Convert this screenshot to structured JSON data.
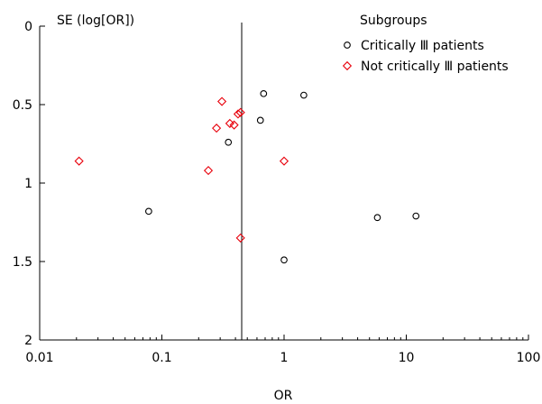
{
  "chart_data": {
    "type": "scatter",
    "title": "",
    "xlabel": "OR",
    "ylabel": "SE (log[OR])",
    "x_scale": "log",
    "xlim": [
      0.01,
      100
    ],
    "ylim": [
      2,
      0
    ],
    "y_inverted": true,
    "x_ticks": [
      {
        "value": 0.01,
        "label": "0.01"
      },
      {
        "value": 0.1,
        "label": "0.1"
      },
      {
        "value": 1,
        "label": "1"
      },
      {
        "value": 10,
        "label": "10"
      },
      {
        "value": 100,
        "label": "100"
      }
    ],
    "y_ticks": [
      {
        "value": 0,
        "label": "0"
      },
      {
        "value": 0.5,
        "label": "0.5"
      },
      {
        "value": 1,
        "label": "1"
      },
      {
        "value": 1.5,
        "label": "1.5"
      },
      {
        "value": 2,
        "label": "2"
      }
    ],
    "reference_line_x": 0.45,
    "grid": false,
    "legend": {
      "title": "Subgroups",
      "position": "top-right"
    },
    "series": [
      {
        "name": "Critically Ⅲ patients",
        "marker": "circle",
        "color": "#000000",
        "points": [
          {
            "x": 0.68,
            "y": 0.43
          },
          {
            "x": 1.45,
            "y": 0.44
          },
          {
            "x": 0.64,
            "y": 0.6
          },
          {
            "x": 0.35,
            "y": 0.74
          },
          {
            "x": 0.078,
            "y": 1.18
          },
          {
            "x": 5.8,
            "y": 1.22
          },
          {
            "x": 12,
            "y": 1.21
          },
          {
            "x": 1.0,
            "y": 1.49
          }
        ]
      },
      {
        "name": "Not critically Ⅲ patients",
        "marker": "diamond",
        "color": "#e8000b",
        "points": [
          {
            "x": 0.31,
            "y": 0.48
          },
          {
            "x": 0.44,
            "y": 0.55
          },
          {
            "x": 0.42,
            "y": 0.56
          },
          {
            "x": 0.36,
            "y": 0.62
          },
          {
            "x": 0.39,
            "y": 0.63
          },
          {
            "x": 0.28,
            "y": 0.65
          },
          {
            "x": 0.021,
            "y": 0.86
          },
          {
            "x": 1.0,
            "y": 0.86
          },
          {
            "x": 0.24,
            "y": 0.92
          },
          {
            "x": 0.44,
            "y": 1.35
          }
        ]
      }
    ]
  }
}
